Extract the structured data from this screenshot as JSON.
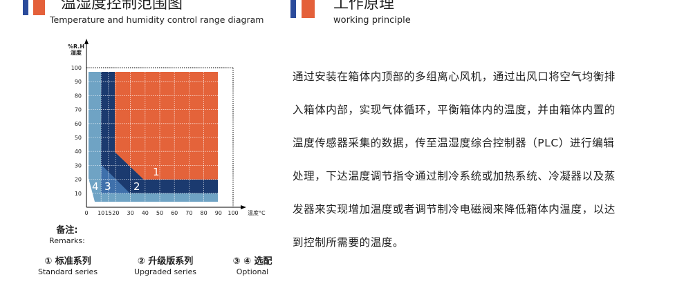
{
  "header_left": {
    "title": "温湿度控制范围图",
    "subtitle": "Temperature and humidity control range diagram"
  },
  "header_right": {
    "title": "工作原理",
    "subtitle": "working principle"
  },
  "diagram": {
    "y_unit": "%R.H",
    "y_label": "湿度",
    "x_label": "温度°C",
    "yticks": [
      10,
      20,
      30,
      40,
      50,
      60,
      70,
      80,
      90,
      100
    ],
    "xticks": [
      0,
      10,
      15,
      20,
      30,
      40,
      50,
      60,
      70,
      80,
      90,
      100
    ],
    "regions": [
      "1",
      "2",
      "3",
      "4"
    ]
  },
  "remarks": {
    "title": "备注:",
    "subtitle": "Remarks:",
    "items": [
      {
        "label": "① 标准系列",
        "sublabel": "Standard series"
      },
      {
        "label": "② 升级版系列",
        "sublabel": "Upgraded series"
      },
      {
        "label": "③ ④ 选配",
        "sublabel": "Optional"
      }
    ]
  },
  "body": {
    "lines": [
      "通过安装在箱体内顶部的多组离心风机，通过出风口将空气均衡排",
      "入箱体内部，实现气体循环，平衡箱体内的温度，并由箱体内置的",
      "温度传感器采集的数据，传至温湿度综合控制器（PLC）进行编辑",
      "处理，下达温度调节指令通过制冷系统或加热系统、冷凝器以及蒸",
      "发器来实现增加温度或者调节制冷电磁阀来降低箱体内温度，以达",
      "到控制所需要的温度。"
    ]
  }
}
